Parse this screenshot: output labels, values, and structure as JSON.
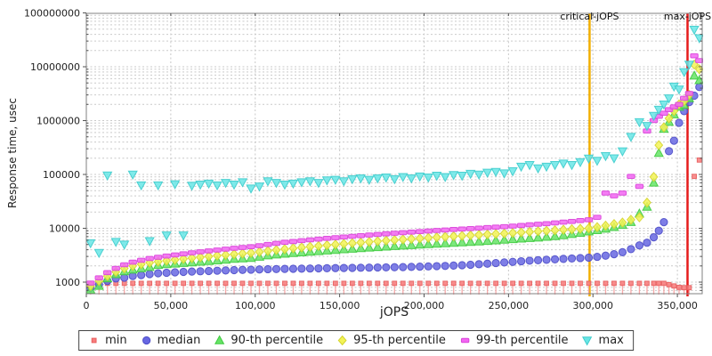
{
  "chart_data": {
    "type": "scatter",
    "title": "",
    "xlabel": "jOPS",
    "ylabel": "Response time, usec",
    "y_scale": "log",
    "grid": "dashed",
    "legend_position": "bottom-center",
    "xlim": [
      0,
      364700
    ],
    "ylim": [
      610,
      100000000
    ],
    "x_ticks": [
      [
        0,
        "0"
      ],
      [
        50000,
        "50,000"
      ],
      [
        100000,
        "100,000"
      ],
      [
        150000,
        "150,000"
      ],
      [
        200000,
        "200,000"
      ],
      [
        250000,
        "250,000"
      ],
      [
        300000,
        "300,000"
      ],
      [
        350000,
        "350,000"
      ]
    ],
    "y_ticks": [
      [
        1000,
        "1000"
      ],
      [
        10000,
        "10000"
      ],
      [
        100000,
        "100000"
      ],
      [
        1000000,
        "1000000"
      ],
      [
        10000000,
        "10000000"
      ],
      [
        100000000,
        "100000000"
      ]
    ],
    "annotations": [
      {
        "label": "critical-jOPS",
        "x": 298000,
        "color": "#f2ae00"
      },
      {
        "label": "max-jOPS",
        "x": 356000,
        "color": "#e61c1c"
      }
    ],
    "x": [
      2500,
      7500,
      12500,
      17500,
      22500,
      27500,
      32500,
      37500,
      42500,
      47500,
      52500,
      57500,
      62500,
      67500,
      72500,
      77500,
      82500,
      87500,
      92500,
      97500,
      102500,
      107500,
      112500,
      117500,
      122500,
      127500,
      132500,
      137500,
      142500,
      147500,
      152500,
      157500,
      162500,
      167500,
      172500,
      177500,
      182500,
      187500,
      192500,
      197500,
      202500,
      207500,
      212500,
      217500,
      222500,
      227500,
      232500,
      237500,
      242500,
      247500,
      252500,
      257500,
      262500,
      267500,
      272500,
      277500,
      282500,
      287500,
      292500,
      297500,
      302500,
      307500,
      312500,
      317500,
      322500,
      327500,
      332000,
      336000,
      339000,
      342000,
      345000,
      348000,
      351000,
      354000,
      357000,
      360000,
      363000
    ],
    "series": [
      {
        "name": "min",
        "marker": "impulse-square",
        "color": "#f87c7c",
        "stroke": "#e85e5e",
        "values": [
          900,
          940,
          950,
          950,
          950,
          950,
          950,
          950,
          950,
          950,
          950,
          950,
          950,
          950,
          950,
          950,
          950,
          950,
          950,
          950,
          950,
          950,
          950,
          950,
          950,
          950,
          950,
          950,
          950,
          950,
          950,
          950,
          950,
          950,
          950,
          950,
          950,
          950,
          950,
          950,
          950,
          950,
          950,
          950,
          950,
          950,
          950,
          950,
          950,
          950,
          950,
          950,
          950,
          950,
          950,
          950,
          950,
          950,
          950,
          950,
          950,
          950,
          950,
          950,
          950,
          950,
          950,
          950,
          950,
          950,
          900,
          850,
          800,
          790,
          790,
          92000,
          185000
        ]
      },
      {
        "name": "median",
        "marker": "circle",
        "color": "#6767e2",
        "stroke": "#4d4dc8",
        "values": [
          780,
          900,
          1050,
          1170,
          1210,
          1300,
          1350,
          1410,
          1460,
          1490,
          1520,
          1550,
          1570,
          1590,
          1610,
          1630,
          1650,
          1670,
          1690,
          1700,
          1720,
          1740,
          1750,
          1760,
          1770,
          1780,
          1790,
          1800,
          1810,
          1820,
          1830,
          1840,
          1850,
          1860,
          1870,
          1880,
          1890,
          1900,
          1920,
          1940,
          1960,
          1980,
          2000,
          2030,
          2060,
          2100,
          2150,
          2200,
          2260,
          2320,
          2380,
          2440,
          2500,
          2550,
          2600,
          2650,
          2700,
          2750,
          2800,
          2850,
          2950,
          3100,
          3300,
          3600,
          4100,
          4800,
          5400,
          6800,
          9000,
          13000,
          270000,
          423000,
          910000,
          1500000,
          2200000,
          2900000,
          4200000
        ]
      },
      {
        "name": "90-th percentile",
        "marker": "triangle-up",
        "color": "#66e466",
        "stroke": "#3fca3f",
        "values": [
          720,
          850,
          1170,
          1400,
          1580,
          1700,
          1800,
          1900,
          2070,
          2140,
          2200,
          2260,
          2320,
          2380,
          2450,
          2520,
          2600,
          2690,
          2750,
          2800,
          2950,
          3130,
          3250,
          3350,
          3450,
          3550,
          3650,
          3750,
          3850,
          3950,
          4050,
          4150,
          4250,
          4350,
          4450,
          4550,
          4650,
          4750,
          4850,
          4950,
          5050,
          5150,
          5250,
          5350,
          5450,
          5550,
          5650,
          5800,
          5950,
          6100,
          6250,
          6400,
          6550,
          6700,
          6900,
          7100,
          7400,
          7800,
          8200,
          8700,
          9200,
          9800,
          10500,
          11500,
          13000,
          18700,
          25000,
          70000,
          250000,
          700000,
          940000,
          1300000,
          1800000,
          1950000,
          2600000,
          6800000,
          5600000
        ]
      },
      {
        "name": "95-th percentile",
        "marker": "diamond",
        "color": "#f3f356",
        "stroke": "#d4d42e",
        "values": [
          850,
          1050,
          1300,
          1550,
          1800,
          2000,
          2150,
          2300,
          2400,
          2500,
          2600,
          2700,
          2800,
          2900,
          3000,
          3100,
          3200,
          3300,
          3400,
          3500,
          3650,
          3800,
          3950,
          4100,
          4250,
          4400,
          4550,
          4700,
          4850,
          5000,
          5150,
          5300,
          5450,
          5600,
          5750,
          5900,
          6050,
          6200,
          6350,
          6500,
          6650,
          6800,
          6950,
          7100,
          7250,
          7400,
          7550,
          7700,
          7850,
          8000,
          8200,
          8400,
          8600,
          8800,
          9000,
          9200,
          9400,
          9600,
          9800,
          10000,
          10500,
          11200,
          12000,
          12800,
          14400,
          16000,
          30000,
          90000,
          350000,
          750000,
          1100000,
          1500000,
          2000000,
          2300000,
          3000000,
          11000000,
          9000000
        ]
      },
      {
        "name": "99-th percentile",
        "marker": "hbar",
        "color": "#f266f2",
        "stroke": "#d944d9",
        "values": [
          960,
          1200,
          1500,
          1800,
          2100,
          2350,
          2550,
          2750,
          2900,
          3050,
          3200,
          3350,
          3500,
          3650,
          3800,
          3950,
          4100,
          4250,
          4400,
          4550,
          4750,
          5000,
          5250,
          5500,
          5700,
          5900,
          6100,
          6300,
          6500,
          6700,
          6900,
          7100,
          7300,
          7500,
          7700,
          7900,
          8100,
          8300,
          8500,
          8700,
          8900,
          9100,
          9300,
          9500,
          9700,
          9900,
          10100,
          10300,
          10500,
          10700,
          11000,
          11300,
          11600,
          11900,
          12200,
          12600,
          13000,
          13400,
          13900,
          14400,
          16000,
          45000,
          40000,
          45000,
          92000,
          60000,
          640000,
          1000000,
          1200000,
          1370000,
          1600000,
          1800000,
          2000000,
          2600000,
          3200000,
          16000000,
          13000000
        ]
      },
      {
        "name": "max",
        "marker": "triangle-down",
        "color": "#69e6e6",
        "stroke": "#3ecccc",
        "values": [
          5300,
          3500,
          96000,
          5600,
          5000,
          100000,
          63000,
          5800,
          63000,
          7400,
          66000,
          7400,
          62000,
          65000,
          68000,
          63000,
          70000,
          65000,
          72000,
          55000,
          60000,
          75000,
          70000,
          65000,
          68000,
          72000,
          75000,
          70000,
          78000,
          80000,
          75000,
          82000,
          85000,
          80000,
          85000,
          88000,
          82000,
          90000,
          85000,
          92000,
          88000,
          95000,
          90000,
          98000,
          95000,
          103000,
          100000,
          108000,
          112000,
          105000,
          115000,
          140000,
          150000,
          130000,
          140000,
          150000,
          160000,
          150000,
          170000,
          198000,
          180000,
          220000,
          200000,
          270000,
          500000,
          940000,
          800000,
          1230000,
          1600000,
          2000000,
          2600000,
          4300000,
          3800000,
          8000000,
          11000000,
          49000000,
          34000000
        ]
      }
    ]
  }
}
